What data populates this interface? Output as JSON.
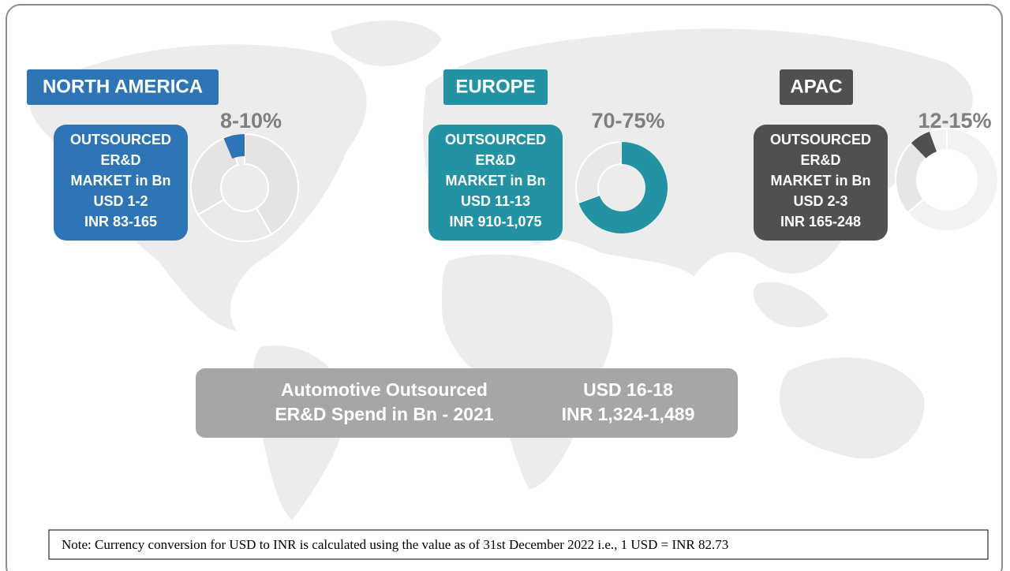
{
  "regions": [
    {
      "name": "NORTH AMERICA",
      "share": "8-10%",
      "lines": [
        "OUTSOURCED",
        "ER&D",
        "MARKET in Bn",
        "USD 1-2",
        "INR 83-165"
      ]
    },
    {
      "name": "EUROPE",
      "share": "70-75%",
      "lines": [
        "OUTSOURCED",
        "ER&D",
        "MARKET in Bn",
        "USD 11-13",
        "INR 910-1,075"
      ]
    },
    {
      "name": "APAC",
      "share": "12-15%",
      "lines": [
        "OUTSOURCED",
        "ER&D",
        "MARKET in Bn",
        "USD 2-3",
        "INR 165-248"
      ]
    }
  ],
  "summary": {
    "label_lines": [
      "Automotive Outsourced",
      "ER&D Spend in Bn - 2021"
    ],
    "value_lines": [
      "USD 16-18",
      "INR 1,324-1,489"
    ]
  },
  "note": "Note: Currency conversion for USD to INR is calculated using the value as of 31st December 2022 i.e., 1 USD = INR 82.73"
}
